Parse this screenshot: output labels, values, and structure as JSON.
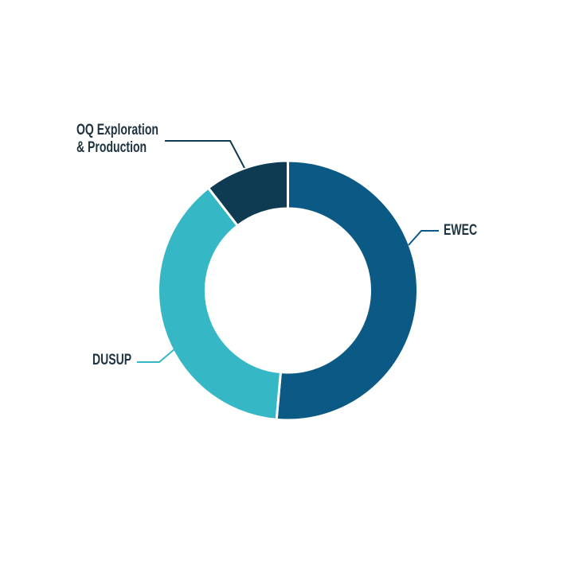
{
  "page": {
    "background_color": "#ffffff"
  },
  "chart_data": {
    "type": "pie",
    "subtype": "donut",
    "title": "",
    "legend_position": "none",
    "label_style": "external-callout-lines",
    "start_angle_deg": 0,
    "direction": "clockwise",
    "outer_radius_px": 163,
    "inner_radius_px": 103,
    "gap_color": "#ffffff",
    "slices": [
      {
        "label": "EWEC",
        "value": 51.4,
        "color": "#0b5a86"
      },
      {
        "label": "DUSUP",
        "value": 38.1,
        "color": "#36b7c6"
      },
      {
        "label": "OQ Exploration & Production",
        "value": 10.5,
        "color": "#0e3a52"
      }
    ]
  },
  "labels": {
    "ewec": "EWEC",
    "dusup": "DUSUP",
    "oq_line1": "OQ Exploration",
    "oq_line2": "& Production",
    "text_color": "#1d3340"
  }
}
